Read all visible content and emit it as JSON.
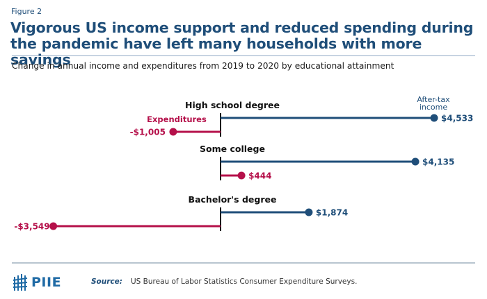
{
  "figure_label": "Figure 2",
  "title_line1": "Vigorous US income support and reduced spending during",
  "title_line2": "the pandemic have left many households with more savings",
  "subtitle": "Change in annual income and expenditures from 2019 to 2020 by educational attainment",
  "source_label": "Source:",
  "source_text": "US Bureau of Labor Statistics Consumer Expenditure Surveys.",
  "logo_text": "PIIE",
  "colors": {
    "income": "#1f4e79",
    "expenditures": "#b5104a",
    "title": "#1f4e79",
    "axis": "#111111"
  },
  "chart_data": {
    "type": "bar",
    "orientation": "horizontal-lollipop",
    "title": "Change in annual income and expenditures from 2019 to 2020 by educational attainment",
    "categories": [
      "High school degree",
      "Some college",
      "Bachelor's degree"
    ],
    "series": [
      {
        "name": "After-tax income",
        "legend_label": "After-tax\nincome",
        "legend_line1": "After-tax",
        "legend_line2": "income",
        "values": [
          4533,
          4135,
          1874
        ],
        "labels": [
          "$4,533",
          "$4,135",
          "$1,874"
        ]
      },
      {
        "name": "Expenditures",
        "legend_label": "Expenditures",
        "values": [
          -1005,
          444,
          -3549
        ],
        "labels": [
          "-$1,005",
          "$444",
          "-$3,549"
        ]
      }
    ],
    "xlim": [
      -3549,
      4533
    ],
    "zero_line": true,
    "grid": false,
    "units": "US dollars"
  }
}
